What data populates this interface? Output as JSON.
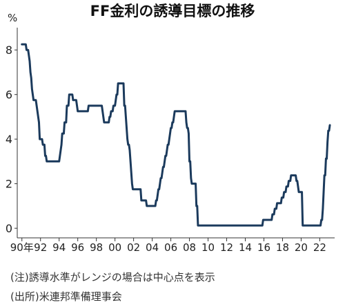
{
  "chart_data": {
    "type": "line",
    "title": "FF金利の誘導目標の推移",
    "xlabel": "",
    "ylabel": "%",
    "grid": false,
    "legend": "none",
    "xlim": [
      1989.5,
      2023.6
    ],
    "ylim": [
      -0.43,
      9.0
    ],
    "x_ticks": [
      1990,
      1992,
      1994,
      1996,
      1998,
      2000,
      2002,
      2004,
      2006,
      2008,
      2010,
      2012,
      2014,
      2016,
      2018,
      2020,
      2022
    ],
    "x_tick_labels": [
      "90年",
      "92",
      "94",
      "96",
      "98",
      "00",
      "02",
      "04",
      "06",
      "08",
      "10",
      "12",
      "14",
      "16",
      "18",
      "20",
      "22"
    ],
    "y_ticks": [
      0,
      2,
      4,
      6,
      8
    ],
    "series": [
      {
        "color": "#1b3a5c",
        "points": [
          [
            "1990-01",
            8.25
          ],
          [
            "1990-06",
            8.25
          ],
          [
            "1990-07",
            8.0
          ],
          [
            "1990-09",
            8.0
          ],
          [
            "1990-10",
            7.75
          ],
          [
            "1990-11",
            7.5
          ],
          [
            "1990-12",
            7.0
          ],
          [
            "1991-01",
            6.75
          ],
          [
            "1991-02",
            6.25
          ],
          [
            "1991-03",
            6.0
          ],
          [
            "1991-04",
            5.75
          ],
          [
            "1991-07",
            5.75
          ],
          [
            "1991-08",
            5.5
          ],
          [
            "1991-09",
            5.25
          ],
          [
            "1991-10",
            5.0
          ],
          [
            "1991-11",
            4.75
          ],
          [
            "1991-12",
            4.0
          ],
          [
            "1992-03",
            4.0
          ],
          [
            "1992-04",
            3.75
          ],
          [
            "1992-06",
            3.75
          ],
          [
            "1992-07",
            3.25
          ],
          [
            "1992-08",
            3.25
          ],
          [
            "1992-09",
            3.0
          ],
          [
            "1994-01",
            3.0
          ],
          [
            "1994-02",
            3.25
          ],
          [
            "1994-03",
            3.5
          ],
          [
            "1994-04",
            3.75
          ],
          [
            "1994-05",
            4.25
          ],
          [
            "1994-07",
            4.25
          ],
          [
            "1994-08",
            4.75
          ],
          [
            "1994-10",
            4.75
          ],
          [
            "1994-11",
            5.5
          ],
          [
            "1995-01",
            5.5
          ],
          [
            "1995-02",
            6.0
          ],
          [
            "1995-06",
            6.0
          ],
          [
            "1995-07",
            5.75
          ],
          [
            "1995-11",
            5.75
          ],
          [
            "1995-12",
            5.5
          ],
          [
            "1996-01",
            5.25
          ],
          [
            "1997-02",
            5.25
          ],
          [
            "1997-03",
            5.5
          ],
          [
            "1998-08",
            5.5
          ],
          [
            "1998-09",
            5.25
          ],
          [
            "1998-10",
            5.0
          ],
          [
            "1998-11",
            4.75
          ],
          [
            "1999-05",
            4.75
          ],
          [
            "1999-06",
            5.0
          ],
          [
            "1999-07",
            5.0
          ],
          [
            "1999-08",
            5.25
          ],
          [
            "1999-10",
            5.25
          ],
          [
            "1999-11",
            5.5
          ],
          [
            "2000-01",
            5.5
          ],
          [
            "2000-02",
            5.75
          ],
          [
            "2000-03",
            6.0
          ],
          [
            "2000-04",
            6.0
          ],
          [
            "2000-05",
            6.5
          ],
          [
            "2000-12",
            6.5
          ],
          [
            "2001-01",
            5.5
          ],
          [
            "2001-02",
            5.5
          ],
          [
            "2001-03",
            5.0
          ],
          [
            "2001-04",
            4.5
          ],
          [
            "2001-05",
            4.0
          ],
          [
            "2001-06",
            3.75
          ],
          [
            "2001-07",
            3.75
          ],
          [
            "2001-08",
            3.5
          ],
          [
            "2001-09",
            3.0
          ],
          [
            "2001-10",
            2.5
          ],
          [
            "2001-11",
            2.0
          ],
          [
            "2001-12",
            1.75
          ],
          [
            "2002-10",
            1.75
          ],
          [
            "2002-11",
            1.25
          ],
          [
            "2003-05",
            1.25
          ],
          [
            "2003-06",
            1.0
          ],
          [
            "2004-05",
            1.0
          ],
          [
            "2004-06",
            1.25
          ],
          [
            "2004-07",
            1.25
          ],
          [
            "2004-08",
            1.5
          ],
          [
            "2004-09",
            1.75
          ],
          [
            "2004-10",
            1.75
          ],
          [
            "2004-11",
            2.0
          ],
          [
            "2004-12",
            2.25
          ],
          [
            "2005-01",
            2.25
          ],
          [
            "2005-02",
            2.5
          ],
          [
            "2005-03",
            2.75
          ],
          [
            "2005-04",
            2.75
          ],
          [
            "2005-05",
            3.0
          ],
          [
            "2005-06",
            3.25
          ],
          [
            "2005-07",
            3.25
          ],
          [
            "2005-08",
            3.5
          ],
          [
            "2005-09",
            3.75
          ],
          [
            "2005-10",
            3.75
          ],
          [
            "2005-11",
            4.0
          ],
          [
            "2005-12",
            4.25
          ],
          [
            "2006-01",
            4.5
          ],
          [
            "2006-02",
            4.5
          ],
          [
            "2006-03",
            4.75
          ],
          [
            "2006-04",
            4.75
          ],
          [
            "2006-05",
            5.0
          ],
          [
            "2006-06",
            5.25
          ],
          [
            "2007-08",
            5.25
          ],
          [
            "2007-09",
            4.75
          ],
          [
            "2007-10",
            4.5
          ],
          [
            "2007-11",
            4.5
          ],
          [
            "2007-12",
            4.25
          ],
          [
            "2008-01",
            3.0
          ],
          [
            "2008-02",
            3.0
          ],
          [
            "2008-03",
            2.25
          ],
          [
            "2008-04",
            2.0
          ],
          [
            "2008-09",
            2.0
          ],
          [
            "2008-10",
            1.0
          ],
          [
            "2008-11",
            1.0
          ],
          [
            "2008-12",
            0.125
          ],
          [
            "2015-11",
            0.125
          ],
          [
            "2015-12",
            0.375
          ],
          [
            "2016-11",
            0.375
          ],
          [
            "2016-12",
            0.625
          ],
          [
            "2017-02",
            0.625
          ],
          [
            "2017-03",
            0.875
          ],
          [
            "2017-05",
            0.875
          ],
          [
            "2017-06",
            1.125
          ],
          [
            "2017-11",
            1.125
          ],
          [
            "2017-12",
            1.375
          ],
          [
            "2018-02",
            1.375
          ],
          [
            "2018-03",
            1.625
          ],
          [
            "2018-05",
            1.625
          ],
          [
            "2018-06",
            1.875
          ],
          [
            "2018-08",
            1.875
          ],
          [
            "2018-09",
            2.125
          ],
          [
            "2018-11",
            2.125
          ],
          [
            "2018-12",
            2.375
          ],
          [
            "2019-06",
            2.375
          ],
          [
            "2019-07",
            2.125
          ],
          [
            "2019-08",
            2.125
          ],
          [
            "2019-09",
            1.875
          ],
          [
            "2019-10",
            1.625
          ],
          [
            "2020-02",
            1.625
          ],
          [
            "2020-03",
            0.125
          ],
          [
            "2022-02",
            0.125
          ],
          [
            "2022-03",
            0.375
          ],
          [
            "2022-04",
            0.375
          ],
          [
            "2022-05",
            0.875
          ],
          [
            "2022-06",
            1.625
          ],
          [
            "2022-07",
            2.375
          ],
          [
            "2022-08",
            2.375
          ],
          [
            "2022-09",
            3.125
          ],
          [
            "2022-10",
            3.125
          ],
          [
            "2022-11",
            3.875
          ],
          [
            "2022-12",
            4.375
          ],
          [
            "2023-01",
            4.375
          ],
          [
            "2023-02",
            4.625
          ]
        ]
      }
    ]
  },
  "notes": [
    "(注)誘導水準がレンジの場合は中心点を表示",
    "(出所)米連邦準備理事会"
  ]
}
